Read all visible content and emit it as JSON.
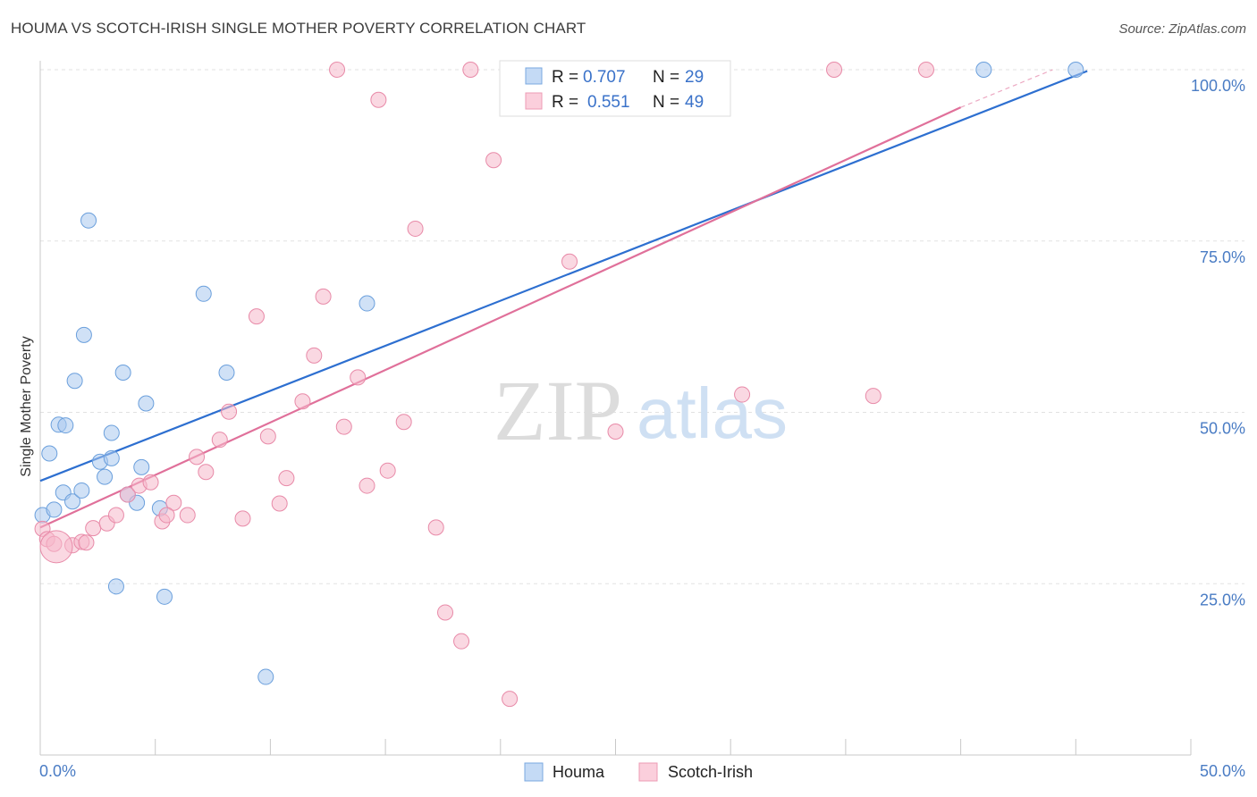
{
  "title": "HOUMA VS SCOTCH-IRISH SINGLE MOTHER POVERTY CORRELATION CHART",
  "source": "Source: ZipAtlas.com",
  "watermark": {
    "zip": "ZIP",
    "atlas": "atlas"
  },
  "chart_data": {
    "type": "scatter",
    "title": "HOUMA VS SCOTCH-IRISH SINGLE MOTHER POVERTY CORRELATION CHART",
    "xlabel": "",
    "ylabel": "Single Mother Poverty",
    "xlim": [
      0,
      50
    ],
    "ylim": [
      0,
      100
    ],
    "x_tick_labels": [
      "0.0%",
      "50.0%"
    ],
    "y_ticks": [
      25,
      50,
      75,
      100
    ],
    "y_tick_labels": [
      "25.0%",
      "50.0%",
      "75.0%",
      "100.0%"
    ],
    "grid": true,
    "legend_position": "top-center",
    "series": [
      {
        "name": "Houma",
        "color": "#a9c8ef",
        "stroke": "#6a9fdc",
        "line_color": "#2d6fd0",
        "R": "0.707",
        "N": "29",
        "trend": {
          "x0": 0,
          "y0": 40.0,
          "x1": 45.5,
          "y1": 99.8
        },
        "points": [
          [
            0.1,
            35.0
          ],
          [
            0.4,
            44.0
          ],
          [
            0.6,
            35.8
          ],
          [
            0.8,
            48.2
          ],
          [
            1.0,
            38.3
          ],
          [
            1.1,
            48.1
          ],
          [
            1.4,
            37.0
          ],
          [
            1.5,
            54.6
          ],
          [
            1.8,
            38.6
          ],
          [
            1.9,
            61.3
          ],
          [
            2.1,
            78.0
          ],
          [
            2.6,
            42.8
          ],
          [
            2.8,
            40.6
          ],
          [
            3.1,
            43.3
          ],
          [
            3.1,
            47.0
          ],
          [
            3.3,
            24.6
          ],
          [
            3.6,
            55.8
          ],
          [
            3.8,
            38.0
          ],
          [
            4.2,
            36.8
          ],
          [
            4.4,
            42.0
          ],
          [
            4.6,
            51.3
          ],
          [
            5.2,
            36.0
          ],
          [
            5.4,
            23.1
          ],
          [
            7.1,
            67.3
          ],
          [
            8.1,
            55.8
          ],
          [
            9.8,
            11.4
          ],
          [
            14.2,
            65.9
          ],
          [
            41.0,
            100.0
          ],
          [
            45.0,
            100.0
          ]
        ]
      },
      {
        "name": "Scotch-Irish",
        "color": "#f6b8cb",
        "stroke": "#e88aa8",
        "line_color": "#e0709a",
        "R": "0.551",
        "N": "49",
        "trend": {
          "x0": 0,
          "y0": 33.2,
          "x1": 40.0,
          "y1": 94.5
        },
        "trend_dashed": {
          "x0": 40.0,
          "y0": 94.5,
          "x1": 44.0,
          "y1": 100.0
        },
        "points": [
          [
            0.1,
            33.0
          ],
          [
            0.3,
            31.5
          ],
          [
            0.6,
            30.8
          ],
          [
            1.4,
            30.6
          ],
          [
            1.8,
            31.1
          ],
          [
            2.3,
            33.1
          ],
          [
            2.9,
            33.8
          ],
          [
            3.3,
            35.0
          ],
          [
            3.8,
            38.0
          ],
          [
            4.3,
            39.3
          ],
          [
            4.8,
            39.8
          ],
          [
            5.3,
            34.1
          ],
          [
            5.8,
            36.8
          ],
          [
            6.4,
            35.0
          ],
          [
            6.8,
            43.5
          ],
          [
            7.2,
            41.3
          ],
          [
            7.8,
            46.0
          ],
          [
            8.2,
            50.1
          ],
          [
            8.8,
            34.5
          ],
          [
            9.4,
            64.0
          ],
          [
            9.9,
            46.5
          ],
          [
            10.4,
            36.7
          ],
          [
            10.7,
            40.4
          ],
          [
            11.4,
            51.6
          ],
          [
            11.9,
            58.3
          ],
          [
            12.3,
            66.9
          ],
          [
            12.9,
            100.0
          ],
          [
            13.2,
            47.9
          ],
          [
            13.8,
            55.1
          ],
          [
            14.2,
            39.3
          ],
          [
            14.7,
            95.6
          ],
          [
            15.1,
            41.5
          ],
          [
            15.8,
            48.6
          ],
          [
            16.3,
            76.8
          ],
          [
            17.2,
            33.2
          ],
          [
            17.6,
            20.8
          ],
          [
            18.3,
            16.6
          ],
          [
            18.7,
            100.0
          ],
          [
            19.7,
            86.8
          ],
          [
            20.4,
            8.2
          ],
          [
            23.0,
            72.0
          ],
          [
            25.0,
            47.2
          ],
          [
            30.5,
            52.6
          ],
          [
            34.5,
            100.0
          ],
          [
            36.2,
            52.4
          ],
          [
            38.5,
            100.0
          ],
          [
            0.7,
            30.4
          ],
          [
            2.0,
            31.0
          ],
          [
            5.5,
            35.0
          ]
        ],
        "sizes_note": "point at (0.7, 30.4) is drawn larger"
      }
    ]
  }
}
